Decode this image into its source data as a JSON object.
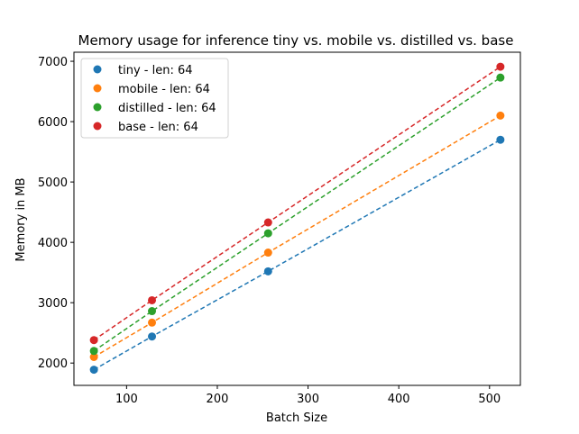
{
  "chart_data": {
    "type": "scatter",
    "title": "Memory usage for inference tiny vs. mobile vs. distilled vs. base",
    "xlabel": "Batch Size",
    "ylabel": "Memory in MB",
    "xlim": [
      42,
      534
    ],
    "ylim": [
      1630,
      7150
    ],
    "xticks": [
      100,
      200,
      300,
      400,
      500
    ],
    "yticks": [
      2000,
      3000,
      4000,
      5000,
      6000,
      7000
    ],
    "grid": false,
    "legend_position": "top-left",
    "x": [
      64,
      128,
      256,
      512
    ],
    "series": [
      {
        "name": "tiny - len: 64",
        "color": "#1f77b4",
        "values": [
          1890,
          2440,
          3520,
          5700
        ]
      },
      {
        "name": "mobile - len: 64",
        "color": "#ff7f0e",
        "values": [
          2100,
          2670,
          3830,
          6100
        ]
      },
      {
        "name": "distilled - len: 64",
        "color": "#2ca02c",
        "values": [
          2200,
          2860,
          4150,
          6730
        ]
      },
      {
        "name": "base - len: 64",
        "color": "#d62728",
        "values": [
          2380,
          3040,
          4330,
          6910
        ]
      }
    ]
  }
}
